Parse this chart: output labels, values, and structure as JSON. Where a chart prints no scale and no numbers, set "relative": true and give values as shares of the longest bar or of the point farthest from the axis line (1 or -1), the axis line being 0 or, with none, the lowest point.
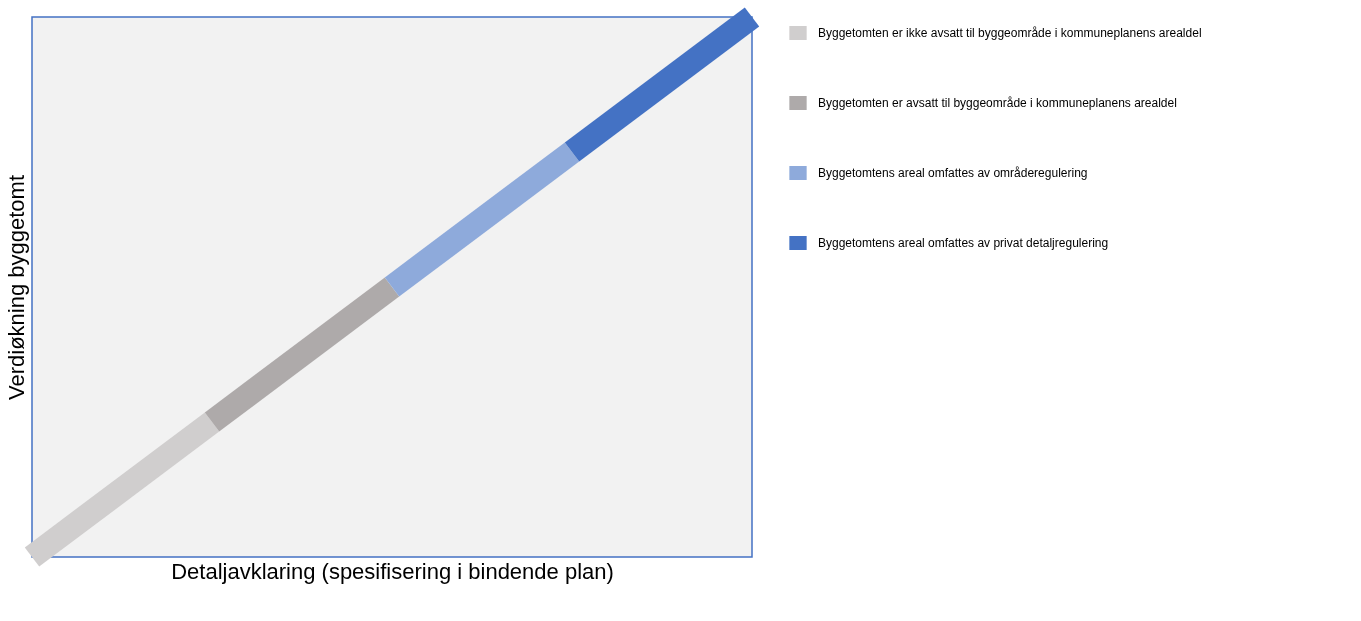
{
  "chart_data": {
    "type": "line",
    "relative": true,
    "xlabel": "Detaljavklaring (spesifisering i bindende plan)",
    "ylabel": "Verdiøkning byggetomt",
    "categories": [
      null,
      null,
      null,
      null,
      null
    ],
    "series": [
      {
        "name": "Byggetomten er ikke avsatt til byggeområde i kommuneplanens arealdel",
        "color": "#d0cece",
        "values": [
          0,
          0.25,
          null,
          null,
          null
        ]
      },
      {
        "name": "Byggetomten er avsatt til byggeområde i kommuneplanens arealdel",
        "color": "#aeaaaa",
        "values": [
          null,
          0.25,
          0.5,
          null,
          null
        ]
      },
      {
        "name": "Byggetomtens areal omfattes av områderegulering",
        "color": "#8eaadb",
        "values": [
          null,
          null,
          0.5,
          0.75,
          null
        ]
      },
      {
        "name": "Byggetomtens areal omfattes av privat detaljregulering",
        "color": "#4472c4",
        "values": [
          null,
          null,
          null,
          0.75,
          1
        ]
      }
    ],
    "legend": "top right",
    "tick_labels": false,
    "grid": false,
    "marker": "none",
    "line_style": "solid"
  }
}
